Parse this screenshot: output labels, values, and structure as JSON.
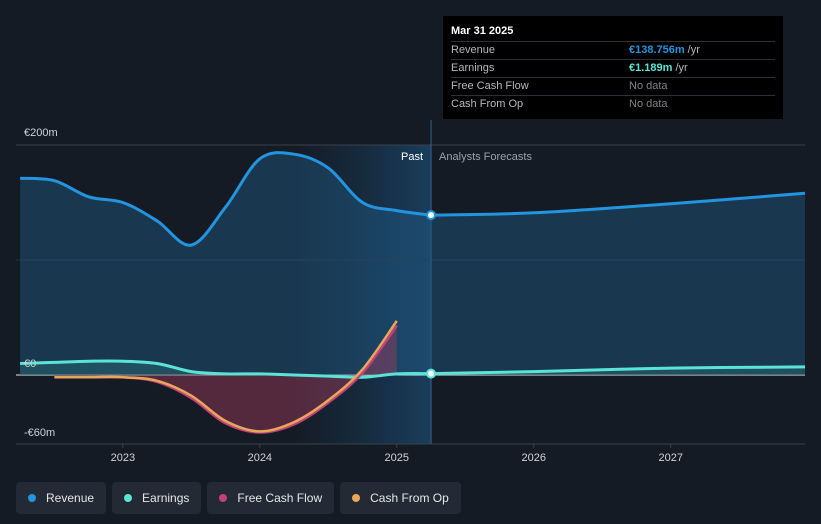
{
  "chart_data": {
    "type": "line",
    "title": "",
    "y_unit_labels": [
      "€200m",
      "€0",
      "-€60m"
    ],
    "ylim": [
      -60,
      200
    ],
    "xlim": [
      2022.22,
      2027.98
    ],
    "x_ticks": [
      {
        "label": "2023",
        "value": 2023
      },
      {
        "label": "2024",
        "value": 2024
      },
      {
        "label": "2025",
        "value": 2025
      },
      {
        "label": "2026",
        "value": 2026
      },
      {
        "label": "2027",
        "value": 2027
      }
    ],
    "divider_x": 2025.25,
    "past_label": "Past",
    "forecast_label": "Analysts Forecasts",
    "series": [
      {
        "name": "Revenue",
        "color": "#2394df",
        "x": [
          2022.25,
          2022.5,
          2022.75,
          2023.0,
          2023.25,
          2023.5,
          2023.75,
          2024.0,
          2024.25,
          2024.5,
          2024.75,
          2025.0,
          2025.25
        ],
        "values": [
          171,
          169,
          155,
          150,
          134,
          113,
          146,
          188,
          192,
          180,
          150,
          143,
          139
        ],
        "forecast_x": [
          2025.25,
          2026.0,
          2027.0,
          2027.98
        ],
        "forecast_values": [
          139,
          141,
          149,
          158
        ]
      },
      {
        "name": "Earnings",
        "color": "#5ae4d6",
        "x": [
          2022.25,
          2022.5,
          2022.75,
          2023.0,
          2023.25,
          2023.5,
          2023.75,
          2024.0,
          2024.25,
          2024.5,
          2024.75,
          2025.0,
          2025.25
        ],
        "values": [
          10,
          11,
          12,
          12,
          10,
          3,
          1,
          1,
          0,
          -1,
          -2,
          1,
          1.19
        ],
        "forecast_x": [
          2025.25,
          2026.0,
          2027.0,
          2027.98
        ],
        "forecast_values": [
          1.19,
          3,
          6,
          7
        ]
      },
      {
        "name": "Free Cash Flow",
        "color": "#c0427a",
        "x": [
          2022.5,
          2022.75,
          2023.0,
          2023.25,
          2023.5,
          2023.75,
          2024.0,
          2024.25,
          2024.5,
          2024.75,
          2025.0
        ],
        "values": [
          -2,
          -2,
          -2,
          -6,
          -20,
          -42,
          -50,
          -43,
          -24,
          2,
          43
        ]
      },
      {
        "name": "Cash From Op",
        "color": "#e8a659",
        "x": [
          2022.5,
          2022.75,
          2023.0,
          2023.25,
          2023.5,
          2023.75,
          2024.0,
          2024.25,
          2024.5,
          2024.75,
          2025.0
        ],
        "values": [
          -2,
          -2,
          -2,
          -5,
          -18,
          -40,
          -49,
          -41,
          -22,
          5,
          47
        ]
      }
    ],
    "tooltip": {
      "date": "Mar 31 2025",
      "rows": [
        {
          "label": "Revenue",
          "value": "€138.756m",
          "unit": "/yr",
          "color": "#2394df"
        },
        {
          "label": "Earnings",
          "value": "€1.189m",
          "unit": "/yr",
          "color": "#5ae4d6"
        },
        {
          "label": "Free Cash Flow",
          "value": "No data",
          "unit": "",
          "color": "#7f8286"
        },
        {
          "label": "Cash From Op",
          "value": "No data",
          "unit": "",
          "color": "#7f8286"
        }
      ]
    }
  },
  "legend": [
    {
      "label": "Revenue",
      "color": "#2394df"
    },
    {
      "label": "Earnings",
      "color": "#5ae4d6"
    },
    {
      "label": "Free Cash Flow",
      "color": "#c0427a"
    },
    {
      "label": "Cash From Op",
      "color": "#e8a659"
    }
  ]
}
